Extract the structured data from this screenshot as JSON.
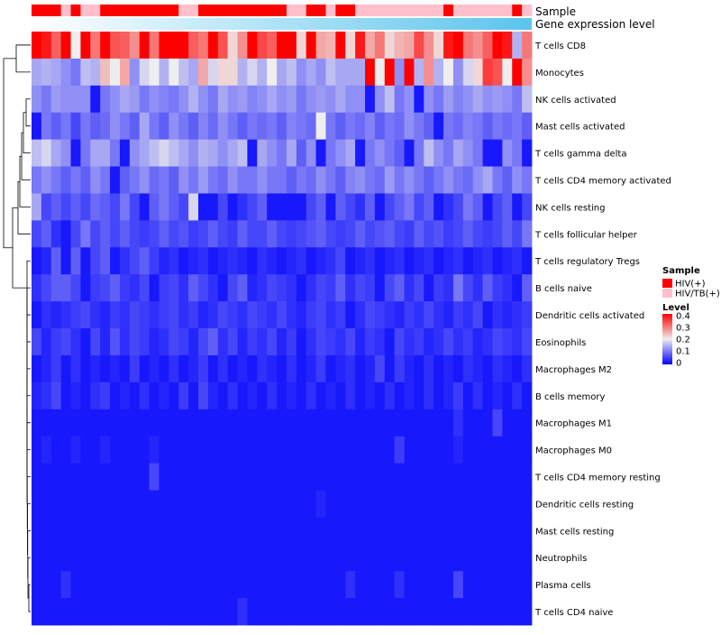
{
  "chart_data": {
    "type": "heatmap",
    "annotation_tracks": [
      {
        "label": "Sample",
        "type": "categorical"
      },
      {
        "label": "Gene expression level",
        "type": "gradient",
        "colors": [
          "#ffffff",
          "#5bc4ee"
        ]
      }
    ],
    "sample_categories": [
      "HIV(+)",
      "HIV/TB(+)"
    ],
    "sample_colors": {
      "HIV(+)": "#ff0000",
      "HIV/TB(+)": "#ffc0cb"
    },
    "sample_groups": [
      "HIV(+)",
      "HIV(+)",
      "HIV(+)",
      "HIV/TB(+)",
      "HIV(+)",
      "HIV/TB(+)",
      "HIV/TB(+)",
      "HIV(+)",
      "HIV(+)",
      "HIV(+)",
      "HIV(+)",
      "HIV(+)",
      "HIV(+)",
      "HIV(+)",
      "HIV(+)",
      "HIV/TB(+)",
      "HIV/TB(+)",
      "HIV(+)",
      "HIV(+)",
      "HIV(+)",
      "HIV(+)",
      "HIV(+)",
      "HIV(+)",
      "HIV(+)",
      "HIV(+)",
      "HIV(+)",
      "HIV/TB(+)",
      "HIV/TB(+)",
      "HIV(+)",
      "HIV(+)",
      "HIV/TB(+)",
      "HIV(+)",
      "HIV(+)",
      "HIV/TB(+)",
      "HIV/TB(+)",
      "HIV/TB(+)",
      "HIV/TB(+)",
      "HIV/TB(+)",
      "HIV/TB(+)",
      "HIV/TB(+)",
      "HIV/TB(+)",
      "HIV/TB(+)",
      "HIV(+)",
      "HIV/TB(+)",
      "HIV/TB(+)",
      "HIV/TB(+)",
      "HIV/TB(+)",
      "HIV/TB(+)",
      "HIV/TB(+)",
      "HIV(+)",
      "HIV/TB(+)"
    ],
    "rows": [
      "T cells CD8",
      "Monocytes",
      "NK cells activated",
      "Mast cells activated",
      "T cells gamma delta",
      "T cells CD4 memory activated",
      "NK cells resting",
      "T cells follicular helper",
      "T cells regulatory  Tregs",
      "B cells naive",
      "Dendritic cells activated",
      "Eosinophils",
      "Macrophages M2",
      "B cells memory",
      "Macrophages M1",
      "Macrophages M0",
      "T cells CD4 memory resting",
      "Dendritic cells resting",
      "Mast cells resting",
      "Neutrophils",
      "Plasma cells",
      "T cells CD4 naive"
    ],
    "values": [
      [
        0.42,
        0.38,
        0.32,
        0.42,
        0.2,
        0.45,
        0.3,
        0.45,
        0.33,
        0.32,
        0.28,
        0.4,
        0.3,
        0.45,
        0.4,
        0.4,
        0.32,
        0.3,
        0.45,
        0.33,
        0.22,
        0.28,
        0.4,
        0.34,
        0.32,
        0.45,
        0.4,
        0.22,
        0.4,
        0.26,
        0.25,
        0.44,
        0.22,
        0.38,
        0.26,
        0.3,
        0.22,
        0.25,
        0.26,
        0.34,
        0.28,
        0.22,
        0.38,
        0.42,
        0.3,
        0.28,
        0.32,
        0.4,
        0.38,
        0.15,
        0.3
      ],
      [
        0.14,
        0.15,
        0.14,
        0.12,
        0.1,
        0.16,
        0.15,
        0.24,
        0.2,
        0.26,
        0.12,
        0.18,
        0.2,
        0.15,
        0.2,
        0.16,
        0.14,
        0.26,
        0.18,
        0.22,
        0.22,
        0.15,
        0.18,
        0.15,
        0.2,
        0.14,
        0.16,
        0.12,
        0.14,
        0.12,
        0.16,
        0.14,
        0.14,
        0.14,
        0.45,
        0.2,
        0.45,
        0.12,
        0.4,
        0.15,
        0.28,
        0.15,
        0.2,
        0.12,
        0.18,
        0.22,
        0.35,
        0.33,
        0.2,
        0.45,
        0.28
      ],
      [
        0.12,
        0.1,
        0.13,
        0.12,
        0.12,
        0.12,
        0.02,
        0.1,
        0.12,
        0.14,
        0.13,
        0.1,
        0.12,
        0.11,
        0.1,
        0.12,
        0.15,
        0.12,
        0.1,
        0.14,
        0.12,
        0.13,
        0.11,
        0.12,
        0.14,
        0.12,
        0.13,
        0.1,
        0.12,
        0.13,
        0.12,
        0.14,
        0.12,
        0.12,
        0.02,
        0.12,
        0.16,
        0.1,
        0.12,
        0.02,
        0.12,
        0.1,
        0.13,
        0.11,
        0.12,
        0.14,
        0.12,
        0.13,
        0.12,
        0.1,
        0.16
      ],
      [
        0.02,
        0.1,
        0.08,
        0.1,
        0.06,
        0.1,
        0.08,
        0.09,
        0.12,
        0.1,
        0.08,
        0.14,
        0.1,
        0.08,
        0.12,
        0.1,
        0.08,
        0.11,
        0.09,
        0.12,
        0.1,
        0.08,
        0.1,
        0.09,
        0.1,
        0.08,
        0.11,
        0.1,
        0.09,
        0.2,
        0.1,
        0.08,
        0.1,
        0.09,
        0.11,
        0.08,
        0.1,
        0.09,
        0.12,
        0.1,
        0.08,
        0.02,
        0.1,
        0.09,
        0.11,
        0.1,
        0.08,
        0.1,
        0.09,
        0.1,
        0.08
      ],
      [
        0.16,
        0.18,
        0.14,
        0.12,
        0.02,
        0.1,
        0.14,
        0.14,
        0.1,
        0.02,
        0.12,
        0.14,
        0.16,
        0.18,
        0.16,
        0.14,
        0.12,
        0.15,
        0.14,
        0.12,
        0.14,
        0.16,
        0.02,
        0.14,
        0.12,
        0.1,
        0.14,
        0.08,
        0.12,
        0.02,
        0.1,
        0.12,
        0.14,
        0.02,
        0.1,
        0.12,
        0.1,
        0.08,
        0.02,
        0.1,
        0.16,
        0.12,
        0.1,
        0.14,
        0.12,
        0.1,
        0.02,
        0.02,
        0.12,
        0.1,
        0.02
      ],
      [
        0.1,
        0.12,
        0.1,
        0.08,
        0.1,
        0.08,
        0.12,
        0.1,
        0.02,
        0.08,
        0.1,
        0.12,
        0.09,
        0.1,
        0.08,
        0.12,
        0.1,
        0.13,
        0.1,
        0.09,
        0.12,
        0.1,
        0.1,
        0.12,
        0.1,
        0.1,
        0.08,
        0.1,
        0.09,
        0.12,
        0.1,
        0.08,
        0.11,
        0.12,
        0.1,
        0.09,
        0.13,
        0.1,
        0.12,
        0.1,
        0.08,
        0.1,
        0.12,
        0.1,
        0.09,
        0.12,
        0.14,
        0.1,
        0.08,
        0.12,
        0.1
      ],
      [
        0.14,
        0.06,
        0.08,
        0.06,
        0.08,
        0.06,
        0.09,
        0.08,
        0.06,
        0.1,
        0.06,
        0.02,
        0.08,
        0.1,
        0.08,
        0.06,
        0.18,
        0.02,
        0.02,
        0.06,
        0.02,
        0.04,
        0.06,
        0.08,
        0.02,
        0.02,
        0.02,
        0.02,
        0.06,
        0.08,
        0.02,
        0.08,
        0.06,
        0.04,
        0.08,
        0.02,
        0.06,
        0.08,
        0.1,
        0.06,
        0.08,
        0.02,
        0.04,
        0.06,
        0.1,
        0.08,
        0.02,
        0.06,
        0.08,
        0.02,
        0.06
      ],
      [
        0.06,
        0.08,
        0.04,
        0.02,
        0.06,
        0.1,
        0.06,
        0.08,
        0.06,
        0.08,
        0.06,
        0.05,
        0.06,
        0.08,
        0.06,
        0.07,
        0.05,
        0.06,
        0.08,
        0.06,
        0.05,
        0.08,
        0.06,
        0.06,
        0.08,
        0.06,
        0.05,
        0.06,
        0.07,
        0.08,
        0.06,
        0.05,
        0.06,
        0.08,
        0.06,
        0.07,
        0.08,
        0.06,
        0.05,
        0.08,
        0.06,
        0.07,
        0.05,
        0.06,
        0.08,
        0.06,
        0.05,
        0.06,
        0.08,
        0.06,
        0.1
      ],
      [
        0.02,
        0.03,
        0.08,
        0.02,
        0.08,
        0.02,
        0.06,
        0.08,
        0.02,
        0.04,
        0.06,
        0.08,
        0.05,
        0.03,
        0.04,
        0.02,
        0.03,
        0.04,
        0.02,
        0.03,
        0.04,
        0.03,
        0.02,
        0.04,
        0.03,
        0.02,
        0.03,
        0.04,
        0.02,
        0.03,
        0.04,
        0.06,
        0.02,
        0.03,
        0.04,
        0.02,
        0.03,
        0.04,
        0.02,
        0.03,
        0.04,
        0.02,
        0.03,
        0.04,
        0.02,
        0.03,
        0.04,
        0.02,
        0.03,
        0.04,
        0.02
      ],
      [
        0.04,
        0.06,
        0.08,
        0.08,
        0.06,
        0.02,
        0.05,
        0.06,
        0.08,
        0.05,
        0.04,
        0.06,
        0.02,
        0.05,
        0.06,
        0.04,
        0.08,
        0.06,
        0.04,
        0.02,
        0.06,
        0.08,
        0.03,
        0.04,
        0.06,
        0.05,
        0.04,
        0.02,
        0.04,
        0.06,
        0.05,
        0.08,
        0.04,
        0.06,
        0.05,
        0.02,
        0.06,
        0.08,
        0.04,
        0.06,
        0.02,
        0.05,
        0.04,
        0.1,
        0.06,
        0.04,
        0.08,
        0.05,
        0.04,
        0.02,
        0.08
      ],
      [
        0.02,
        0.04,
        0.03,
        0.04,
        0.05,
        0.06,
        0.04,
        0.03,
        0.05,
        0.04,
        0.06,
        0.05,
        0.04,
        0.05,
        0.06,
        0.04,
        0.05,
        0.03,
        0.04,
        0.06,
        0.05,
        0.04,
        0.06,
        0.05,
        0.04,
        0.06,
        0.04,
        0.03,
        0.05,
        0.06,
        0.04,
        0.05,
        0.02,
        0.04,
        0.06,
        0.05,
        0.04,
        0.03,
        0.05,
        0.04,
        0.06,
        0.04,
        0.03,
        0.05,
        0.04,
        0.06,
        0.02,
        0.04,
        0.03,
        0.04,
        0.05
      ],
      [
        0.06,
        0.03,
        0.05,
        0.06,
        0.04,
        0.02,
        0.06,
        0.03,
        0.07,
        0.04,
        0.06,
        0.05,
        0.03,
        0.04,
        0.06,
        0.05,
        0.03,
        0.06,
        0.08,
        0.04,
        0.06,
        0.03,
        0.05,
        0.04,
        0.06,
        0.03,
        0.05,
        0.02,
        0.04,
        0.06,
        0.05,
        0.04,
        0.06,
        0.03,
        0.05,
        0.04,
        0.02,
        0.06,
        0.04,
        0.05,
        0.03,
        0.04,
        0.06,
        0.04,
        0.05,
        0.03,
        0.04,
        0.06,
        0.05,
        0.04,
        0.06
      ],
      [
        0.02,
        0.03,
        0.05,
        0.02,
        0.04,
        0.02,
        0.03,
        0.02,
        0.03,
        0.02,
        0.05,
        0.02,
        0.03,
        0.02,
        0.04,
        0.02,
        0.03,
        0.05,
        0.02,
        0.04,
        0.02,
        0.03,
        0.02,
        0.04,
        0.03,
        0.02,
        0.04,
        0.02,
        0.03,
        0.05,
        0.02,
        0.03,
        0.04,
        0.02,
        0.03,
        0.06,
        0.02,
        0.05,
        0.03,
        0.02,
        0.04,
        0.02,
        0.03,
        0.02,
        0.04,
        0.03,
        0.02,
        0.04,
        0.03,
        0.02,
        0.04
      ],
      [
        0.03,
        0.04,
        0.06,
        0.02,
        0.03,
        0.02,
        0.04,
        0.05,
        0.02,
        0.03,
        0.02,
        0.04,
        0.02,
        0.03,
        0.02,
        0.05,
        0.02,
        0.06,
        0.03,
        0.02,
        0.04,
        0.02,
        0.03,
        0.02,
        0.04,
        0.02,
        0.03,
        0.02,
        0.04,
        0.02,
        0.03,
        0.02,
        0.04,
        0.02,
        0.03,
        0.02,
        0.04,
        0.02,
        0.03,
        0.02,
        0.04,
        0.02,
        0.03,
        0.05,
        0.02,
        0.04,
        0.02,
        0.03,
        0.02,
        0.04,
        0.02
      ],
      [
        0.02,
        0.02,
        0.02,
        0.02,
        0.02,
        0.02,
        0.02,
        0.02,
        0.02,
        0.02,
        0.02,
        0.02,
        0.02,
        0.02,
        0.02,
        0.02,
        0.02,
        0.02,
        0.02,
        0.02,
        0.02,
        0.02,
        0.02,
        0.02,
        0.02,
        0.02,
        0.02,
        0.02,
        0.02,
        0.02,
        0.02,
        0.02,
        0.02,
        0.02,
        0.02,
        0.02,
        0.02,
        0.02,
        0.02,
        0.02,
        0.02,
        0.02,
        0.02,
        0.04,
        0.02,
        0.02,
        0.02,
        0.06,
        0.02,
        0.02,
        0.02
      ],
      [
        0.02,
        0.03,
        0.02,
        0.02,
        0.03,
        0.02,
        0.02,
        0.03,
        0.02,
        0.02,
        0.02,
        0.02,
        0.03,
        0.02,
        0.02,
        0.02,
        0.02,
        0.02,
        0.02,
        0.02,
        0.02,
        0.02,
        0.02,
        0.02,
        0.02,
        0.02,
        0.02,
        0.02,
        0.02,
        0.02,
        0.02,
        0.02,
        0.02,
        0.02,
        0.02,
        0.02,
        0.02,
        0.05,
        0.02,
        0.02,
        0.02,
        0.02,
        0.02,
        0.03,
        0.02,
        0.02,
        0.02,
        0.02,
        0.02,
        0.02,
        0.02
      ],
      [
        0.02,
        0.02,
        0.02,
        0.02,
        0.02,
        0.02,
        0.02,
        0.02,
        0.02,
        0.02,
        0.02,
        0.02,
        0.06,
        0.02,
        0.02,
        0.02,
        0.02,
        0.02,
        0.02,
        0.02,
        0.02,
        0.02,
        0.02,
        0.02,
        0.02,
        0.02,
        0.02,
        0.02,
        0.02,
        0.02,
        0.02,
        0.02,
        0.02,
        0.02,
        0.02,
        0.02,
        0.02,
        0.02,
        0.02,
        0.02,
        0.02,
        0.02,
        0.02,
        0.02,
        0.02,
        0.02,
        0.02,
        0.02,
        0.02,
        0.02,
        0.02
      ],
      [
        0.02,
        0.02,
        0.02,
        0.02,
        0.02,
        0.02,
        0.02,
        0.02,
        0.02,
        0.02,
        0.02,
        0.02,
        0.02,
        0.02,
        0.02,
        0.02,
        0.02,
        0.02,
        0.02,
        0.02,
        0.02,
        0.02,
        0.02,
        0.02,
        0.02,
        0.02,
        0.02,
        0.02,
        0.02,
        0.03,
        0.02,
        0.02,
        0.02,
        0.02,
        0.02,
        0.02,
        0.02,
        0.02,
        0.02,
        0.02,
        0.02,
        0.02,
        0.02,
        0.02,
        0.02,
        0.02,
        0.02,
        0.02,
        0.02,
        0.02,
        0.02
      ],
      [
        0.02,
        0.02,
        0.02,
        0.02,
        0.02,
        0.02,
        0.02,
        0.02,
        0.02,
        0.02,
        0.02,
        0.02,
        0.02,
        0.02,
        0.02,
        0.02,
        0.02,
        0.02,
        0.02,
        0.02,
        0.02,
        0.02,
        0.02,
        0.02,
        0.02,
        0.02,
        0.02,
        0.02,
        0.02,
        0.02,
        0.02,
        0.02,
        0.02,
        0.02,
        0.02,
        0.02,
        0.02,
        0.02,
        0.02,
        0.02,
        0.02,
        0.02,
        0.02,
        0.02,
        0.02,
        0.02,
        0.02,
        0.02,
        0.02,
        0.02,
        0.02
      ],
      [
        0.02,
        0.02,
        0.02,
        0.02,
        0.02,
        0.02,
        0.02,
        0.02,
        0.02,
        0.02,
        0.02,
        0.02,
        0.02,
        0.02,
        0.02,
        0.02,
        0.02,
        0.02,
        0.02,
        0.02,
        0.02,
        0.02,
        0.02,
        0.02,
        0.02,
        0.02,
        0.02,
        0.02,
        0.02,
        0.02,
        0.02,
        0.02,
        0.02,
        0.02,
        0.02,
        0.02,
        0.02,
        0.02,
        0.02,
        0.02,
        0.02,
        0.02,
        0.02,
        0.02,
        0.02,
        0.02,
        0.02,
        0.02,
        0.02,
        0.02,
        0.02
      ],
      [
        0.02,
        0.02,
        0.02,
        0.04,
        0.02,
        0.02,
        0.02,
        0.02,
        0.02,
        0.02,
        0.02,
        0.02,
        0.02,
        0.02,
        0.02,
        0.02,
        0.02,
        0.02,
        0.02,
        0.02,
        0.02,
        0.02,
        0.02,
        0.02,
        0.02,
        0.02,
        0.02,
        0.02,
        0.02,
        0.02,
        0.02,
        0.02,
        0.04,
        0.02,
        0.02,
        0.02,
        0.02,
        0.04,
        0.02,
        0.02,
        0.02,
        0.02,
        0.02,
        0.06,
        0.02,
        0.02,
        0.02,
        0.02,
        0.02,
        0.02,
        0.02
      ],
      [
        0.02,
        0.02,
        0.02,
        0.02,
        0.02,
        0.02,
        0.02,
        0.02,
        0.02,
        0.02,
        0.02,
        0.02,
        0.02,
        0.02,
        0.02,
        0.02,
        0.02,
        0.02,
        0.02,
        0.02,
        0.02,
        0.04,
        0.02,
        0.02,
        0.02,
        0.02,
        0.02,
        0.02,
        0.02,
        0.02,
        0.02,
        0.02,
        0.02,
        0.02,
        0.02,
        0.02,
        0.02,
        0.02,
        0.02,
        0.02,
        0.02,
        0.02,
        0.02,
        0.02,
        0.02,
        0.02,
        0.02,
        0.02,
        0.02,
        0.02,
        0.02
      ]
    ],
    "color_scale": {
      "min": 0,
      "mid": 0.2,
      "max": 0.4,
      "colors": [
        "#0000ff",
        "#eeeeee",
        "#ff0000"
      ]
    },
    "legend": {
      "sample_title": "Sample",
      "level_title": "Level",
      "level_ticks": [
        "0.4",
        "0.3",
        "0.2",
        "0.1",
        "0"
      ],
      "placement": "right"
    },
    "dendrogram": "rows"
  }
}
